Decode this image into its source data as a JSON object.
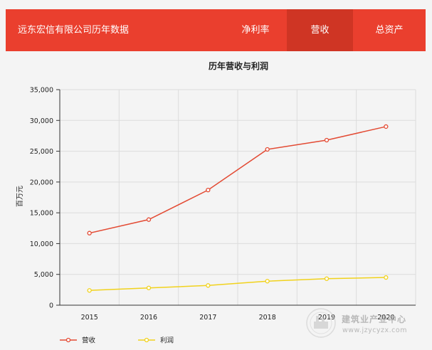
{
  "header": {
    "title": "远东宏信有限公司历年数据",
    "tabs": [
      {
        "label": "净利率",
        "active": false
      },
      {
        "label": "营收",
        "active": true
      },
      {
        "label": "总资产",
        "active": false
      }
    ],
    "color": "#ea3f2e",
    "active_color": "#cf3524"
  },
  "watermark": {
    "text": "建筑业产业中心",
    "url": "www.jzycyzx.com",
    "icon": "factory-seal-icon"
  },
  "chart_data": {
    "type": "line",
    "title": "历年营收与利润",
    "ylabel": "百万元",
    "xlabel": "",
    "categories": [
      "2015",
      "2016",
      "2017",
      "2018",
      "2019",
      "2020"
    ],
    "ylim": [
      0,
      35000
    ],
    "yticks": [
      "0",
      "5,000",
      "10,000",
      "15,000",
      "20,000",
      "25,000",
      "30,000",
      "35,000"
    ],
    "grid": true,
    "legend_position": "bottom-left",
    "series": [
      {
        "name": "营收",
        "color": "#e34a33",
        "values": [
          11700,
          13900,
          18700,
          25300,
          26800,
          29000
        ]
      },
      {
        "name": "利润",
        "color": "#f1d21c",
        "values": [
          2400,
          2800,
          3200,
          3900,
          4300,
          4500
        ]
      }
    ]
  }
}
